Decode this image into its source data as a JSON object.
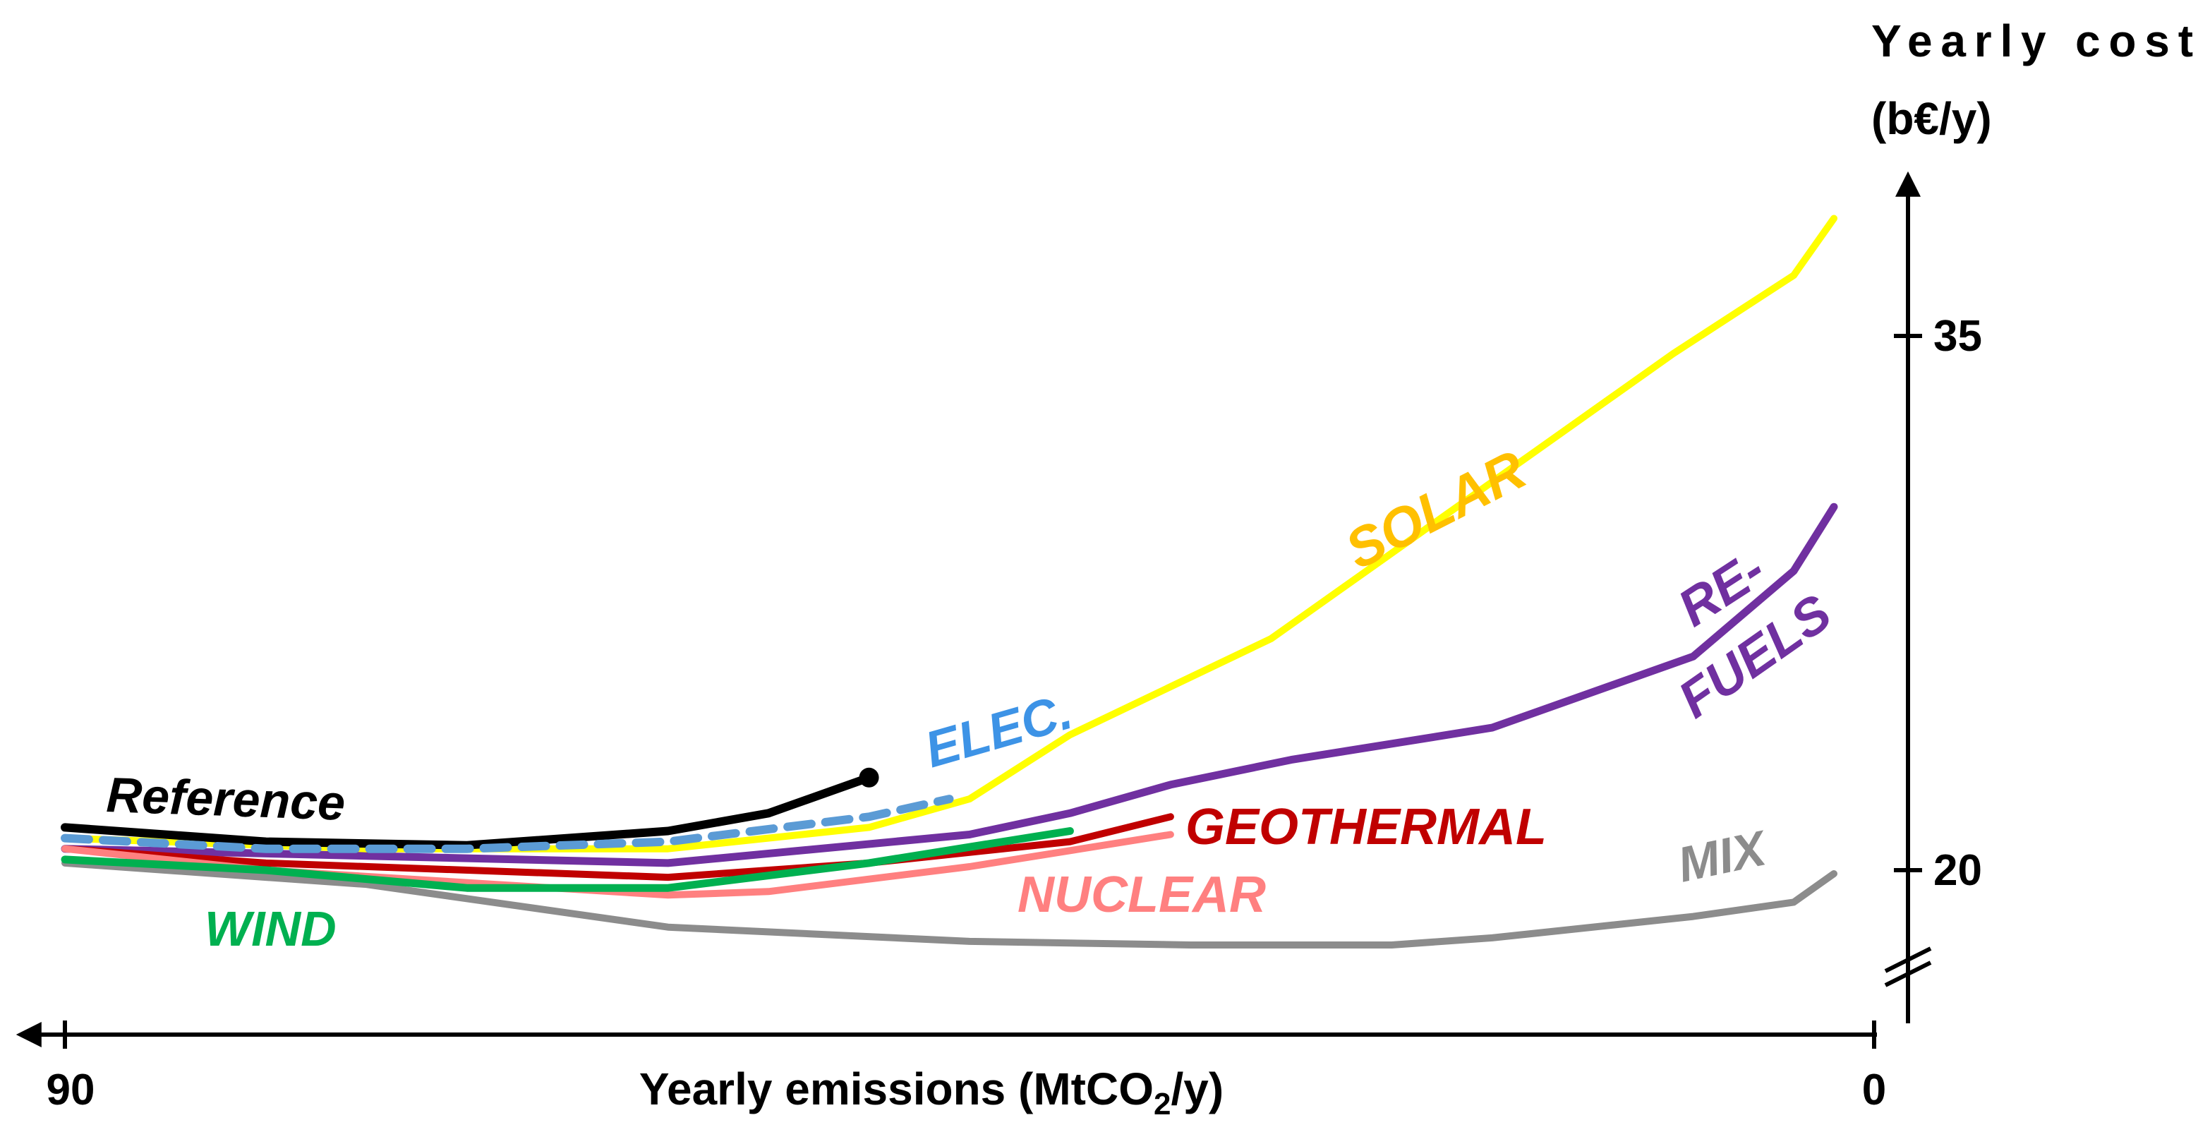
{
  "chart_data": {
    "type": "line",
    "title": "",
    "xlabel": "Yearly emissions (MtCO",
    "xlabel_sub": "2",
    "xlabel_end": "/y)",
    "ylabel_line1": "Yearly cost",
    "ylabel_line2": "(b€/y)",
    "x_ticks": [
      "90",
      "0"
    ],
    "y_ticks": [
      "35",
      "20"
    ],
    "xlim": [
      90,
      0
    ],
    "x_direction": "reversed",
    "y_axis_break": true,
    "colors": {
      "Reference": "#000000",
      "SOLAR": "#ffff00",
      "SOLAR_label": "#ffc000",
      "ELEC.": "#5b9bd5",
      "ELEC._label": "#3d93e6",
      "RE-FUELS": "#7030a0",
      "GEOTHERMAL": "#c00000",
      "NUCLEAR": "#ff8080",
      "WIND": "#00b050",
      "MIX": "#8c8c8c"
    },
    "series": [
      {
        "name": "MIX",
        "label": "MIX",
        "x": [
          90,
          75,
          60,
          45,
          34,
          24,
          19,
          9,
          4,
          2
        ],
        "y": [
          20.2,
          19.6,
          18.4,
          18.0,
          17.9,
          17.9,
          18.1,
          18.7,
          19.1,
          19.9
        ]
      },
      {
        "name": "RE-FUELS",
        "label_line1": "RE-",
        "label_line2": "FUELS",
        "x": [
          90,
          75,
          60,
          45,
          40,
          35,
          29,
          19,
          9,
          4,
          2
        ],
        "y": [
          20.6,
          20.4,
          20.2,
          21.0,
          21.6,
          22.4,
          23.1,
          24.0,
          26.0,
          28.4,
          30.2
        ]
      },
      {
        "name": "SOLAR",
        "label": "SOLAR",
        "x": [
          90,
          75,
          60,
          50,
          45,
          40,
          30,
          20,
          10,
          4,
          2
        ],
        "y": [
          20.9,
          20.6,
          20.6,
          21.2,
          22.0,
          23.8,
          26.5,
          30.5,
          34.5,
          36.7,
          38.3
        ]
      },
      {
        "name": "Reference",
        "label": "Reference",
        "x": [
          90,
          80,
          70,
          60,
          55,
          50
        ],
        "y": [
          21.2,
          20.8,
          20.7,
          21.1,
          21.6,
          22.6
        ]
      },
      {
        "name": "ELEC.",
        "label": "ELEC.",
        "x": [
          90,
          80,
          70,
          60,
          50,
          46
        ],
        "y": [
          20.9,
          20.6,
          20.6,
          20.8,
          21.5,
          22.0
        ]
      },
      {
        "name": "GEOTHERMAL",
        "label": "GEOTHERMAL",
        "x": [
          90,
          80,
          60,
          50,
          40,
          35
        ],
        "y": [
          20.6,
          20.2,
          19.8,
          20.2,
          20.8,
          21.5
        ]
      },
      {
        "name": "NUCLEAR",
        "label": "NUCLEAR",
        "x": [
          90,
          80,
          60,
          55,
          45,
          35
        ],
        "y": [
          20.6,
          20.0,
          19.3,
          19.4,
          20.1,
          21.0
        ]
      },
      {
        "name": "WIND",
        "label": "WIND",
        "x": [
          90,
          80,
          70,
          60,
          50,
          40
        ],
        "y": [
          20.3,
          20.0,
          19.5,
          19.5,
          20.2,
          21.1
        ]
      }
    ]
  }
}
